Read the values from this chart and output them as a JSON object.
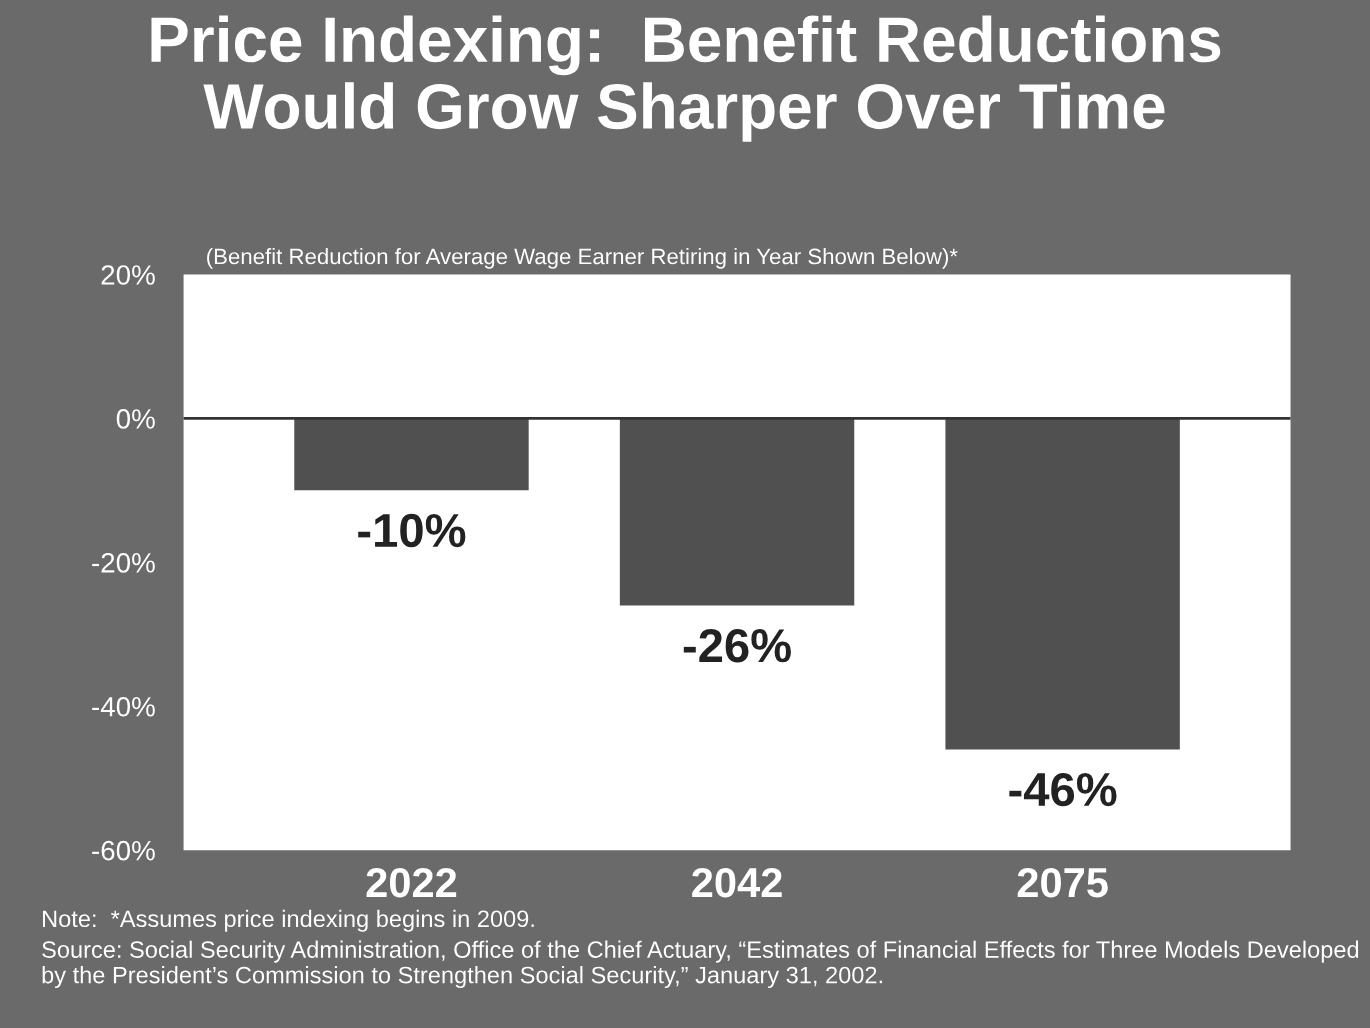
{
  "chart_data": {
    "type": "bar",
    "title": "Price Indexing:  Benefit Reductions\nWould Grow Sharper Over Time",
    "subtitle": "(Benefit Reduction for Average Wage Earner Retiring in Year Shown Below)*",
    "categories": [
      "2022",
      "2042",
      "2075"
    ],
    "values": [
      -10,
      -26,
      -46
    ],
    "color": "#505050",
    "value_labels": [
      "-10%",
      "-26%",
      "-46%"
    ],
    "ylim": [
      -60,
      20
    ],
    "yticks": [
      {
        "value": 20,
        "label": "20%"
      },
      {
        "value": 0,
        "label": "0%"
      },
      {
        "value": -20,
        "label": "-20%"
      },
      {
        "value": -40,
        "label": "-40%"
      },
      {
        "value": -60,
        "label": "-60%"
      }
    ],
    "ref_lines": [
      {
        "axis": "y",
        "value": 0,
        "label": null,
        "color": "#333333"
      }
    ],
    "grid": false,
    "legend": false,
    "annotations": [
      "Note:  *Assumes price indexing begins in 2009.",
      "Source: Social Security Administration, Office of the Chief Actuary, “Estimates of Financial Effects for Three Models Developed by the President’s Commission to Strengthen Social Security,” January 31, 2002."
    ]
  }
}
